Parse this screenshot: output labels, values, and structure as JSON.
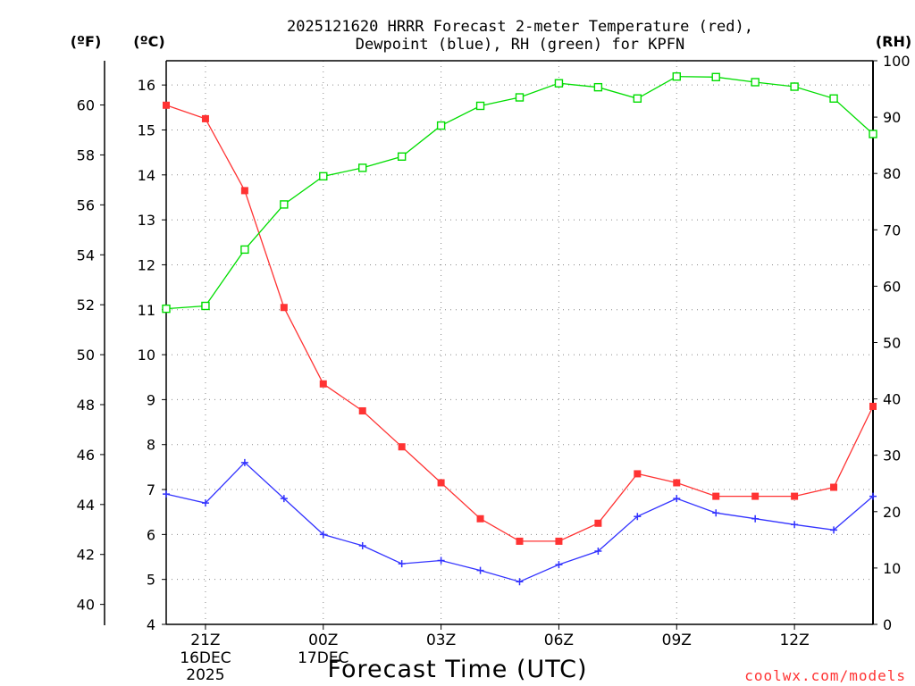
{
  "chart_data": {
    "type": "line",
    "title_line1": "2025121620 HRRR Forecast 2-meter Temperature (red),",
    "title_line2": "Dewpoint (blue), RH (green) for KPFN",
    "xlabel": "Forecast Time (UTC)",
    "unit_f": "(ºF)",
    "unit_c": "(ºC)",
    "unit_rh": "(RH)",
    "credit": "coolwx.com/models",
    "colors": {
      "temperature": "#ff3333",
      "dewpoint": "#3333ff",
      "rh": "#00dd00",
      "credit": "#ff3333"
    },
    "x_hours": [
      20,
      21,
      22,
      23,
      24,
      25,
      26,
      27,
      28,
      29,
      30,
      31,
      32,
      33,
      34,
      35,
      36,
      37,
      38
    ],
    "x_range": [
      20,
      38
    ],
    "x_ticks": [
      {
        "hour": 21,
        "label": "21Z",
        "sub1": "16DEC",
        "sub2": "2025"
      },
      {
        "hour": 24,
        "label": "00Z",
        "sub1": "17DEC",
        "sub2": ""
      },
      {
        "hour": 27,
        "label": "03Z",
        "sub1": "",
        "sub2": ""
      },
      {
        "hour": 30,
        "label": "06Z",
        "sub1": "",
        "sub2": ""
      },
      {
        "hour": 33,
        "label": "09Z",
        "sub1": "",
        "sub2": ""
      },
      {
        "hour": 36,
        "label": "12Z",
        "sub1": "",
        "sub2": ""
      }
    ],
    "celsius_range": [
      4,
      16.5
    ],
    "celsius_ticks": [
      4,
      5,
      6,
      7,
      8,
      9,
      10,
      11,
      12,
      13,
      14,
      15,
      16
    ],
    "fahrenheit_ticks": [
      40,
      42,
      44,
      46,
      48,
      50,
      52,
      54,
      56,
      58,
      60
    ],
    "rh_range": [
      0,
      100
    ],
    "rh_ticks": [
      0,
      10,
      20,
      30,
      40,
      50,
      60,
      70,
      80,
      90,
      100
    ],
    "series": [
      {
        "name": "Temperature",
        "unit": "C",
        "marker": "square-filled",
        "values": [
          15.55,
          15.25,
          13.65,
          11.05,
          9.35,
          8.75,
          7.95,
          7.15,
          6.35,
          5.85,
          5.85,
          6.25,
          7.35,
          7.15,
          6.85,
          6.85,
          6.85,
          7.05,
          8.85
        ]
      },
      {
        "name": "Dewpoint",
        "unit": "C",
        "marker": "plus",
        "values": [
          6.9,
          6.7,
          7.6,
          6.8,
          6.0,
          5.75,
          5.35,
          5.42,
          5.2,
          4.95,
          5.33,
          5.63,
          6.4,
          6.8,
          6.48,
          6.35,
          6.22,
          6.1,
          6.85
        ]
      },
      {
        "name": "RH",
        "unit": "%",
        "marker": "square-open",
        "values": [
          56,
          56.5,
          66.5,
          74.5,
          79.5,
          81,
          83,
          88.5,
          92,
          93.5,
          96,
          95.3,
          93.3,
          97.2,
          97.1,
          96.2,
          95.4,
          93.3,
          87
        ]
      }
    ]
  }
}
